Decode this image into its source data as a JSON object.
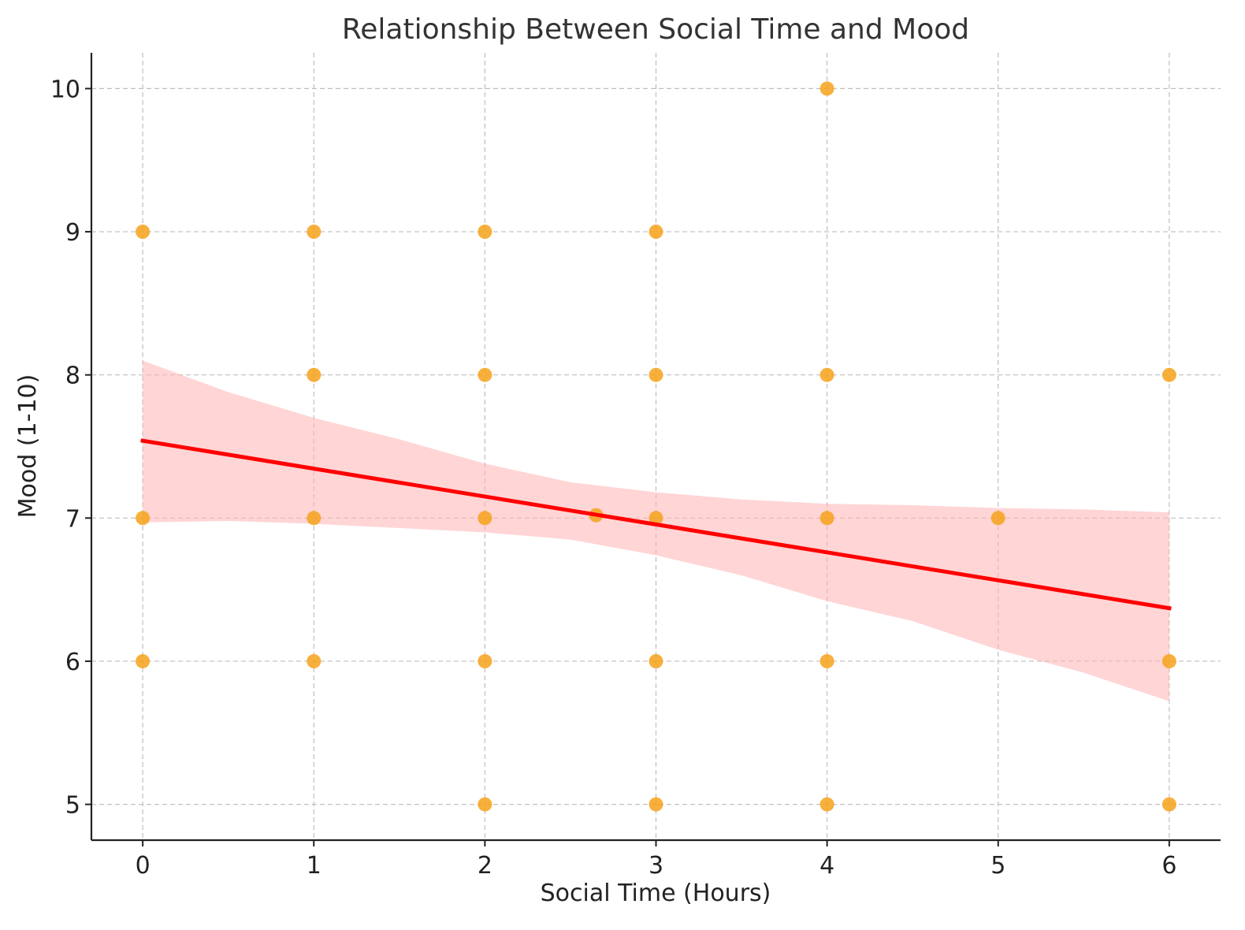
{
  "chart_data": {
    "type": "scatter",
    "title": "Relationship Between Social Time and Mood",
    "xlabel": "Social Time (Hours)",
    "ylabel": "Mood (1-10)",
    "xlim": [
      -0.3,
      6.3
    ],
    "ylim": [
      4.75,
      10.25
    ],
    "x_ticks": [
      "0",
      "1",
      "2",
      "3",
      "4",
      "5",
      "6"
    ],
    "y_ticks": [
      "5",
      "6",
      "7",
      "8",
      "9",
      "10"
    ],
    "grid": true,
    "colors": {
      "points": "#f7a21b",
      "trend_line": "#ff0000",
      "confidence_band": "#ffb3b3",
      "grid": "#bfbfbf",
      "axis": "#222222"
    },
    "points": [
      {
        "x": 0,
        "y": 9
      },
      {
        "x": 0,
        "y": 7
      },
      {
        "x": 0,
        "y": 6
      },
      {
        "x": 1,
        "y": 9
      },
      {
        "x": 1,
        "y": 8
      },
      {
        "x": 1,
        "y": 7
      },
      {
        "x": 1,
        "y": 6
      },
      {
        "x": 2,
        "y": 9
      },
      {
        "x": 2,
        "y": 8
      },
      {
        "x": 2,
        "y": 7
      },
      {
        "x": 2,
        "y": 6
      },
      {
        "x": 2,
        "y": 5
      },
      {
        "x": 2.65,
        "y": 7.02
      },
      {
        "x": 3,
        "y": 9
      },
      {
        "x": 3,
        "y": 8
      },
      {
        "x": 3,
        "y": 7
      },
      {
        "x": 3,
        "y": 6
      },
      {
        "x": 3,
        "y": 5
      },
      {
        "x": 4,
        "y": 10
      },
      {
        "x": 4,
        "y": 8
      },
      {
        "x": 4,
        "y": 7
      },
      {
        "x": 4,
        "y": 6
      },
      {
        "x": 4,
        "y": 5
      },
      {
        "x": 5,
        "y": 7
      },
      {
        "x": 6,
        "y": 8
      },
      {
        "x": 6,
        "y": 6
      },
      {
        "x": 6,
        "y": 5
      }
    ],
    "trend_line": {
      "x": [
        0,
        6
      ],
      "y": [
        7.54,
        6.37
      ]
    },
    "confidence_band": {
      "x": [
        0,
        0.5,
        1,
        1.5,
        2,
        2.5,
        3,
        3.5,
        4,
        4.5,
        5,
        5.5,
        6
      ],
      "upper": [
        8.1,
        7.88,
        7.7,
        7.55,
        7.38,
        7.25,
        7.18,
        7.13,
        7.1,
        7.09,
        7.07,
        7.06,
        7.04
      ],
      "lower": [
        6.97,
        6.98,
        6.96,
        6.93,
        6.9,
        6.85,
        6.74,
        6.6,
        6.42,
        6.28,
        6.08,
        5.92,
        5.72
      ]
    }
  }
}
